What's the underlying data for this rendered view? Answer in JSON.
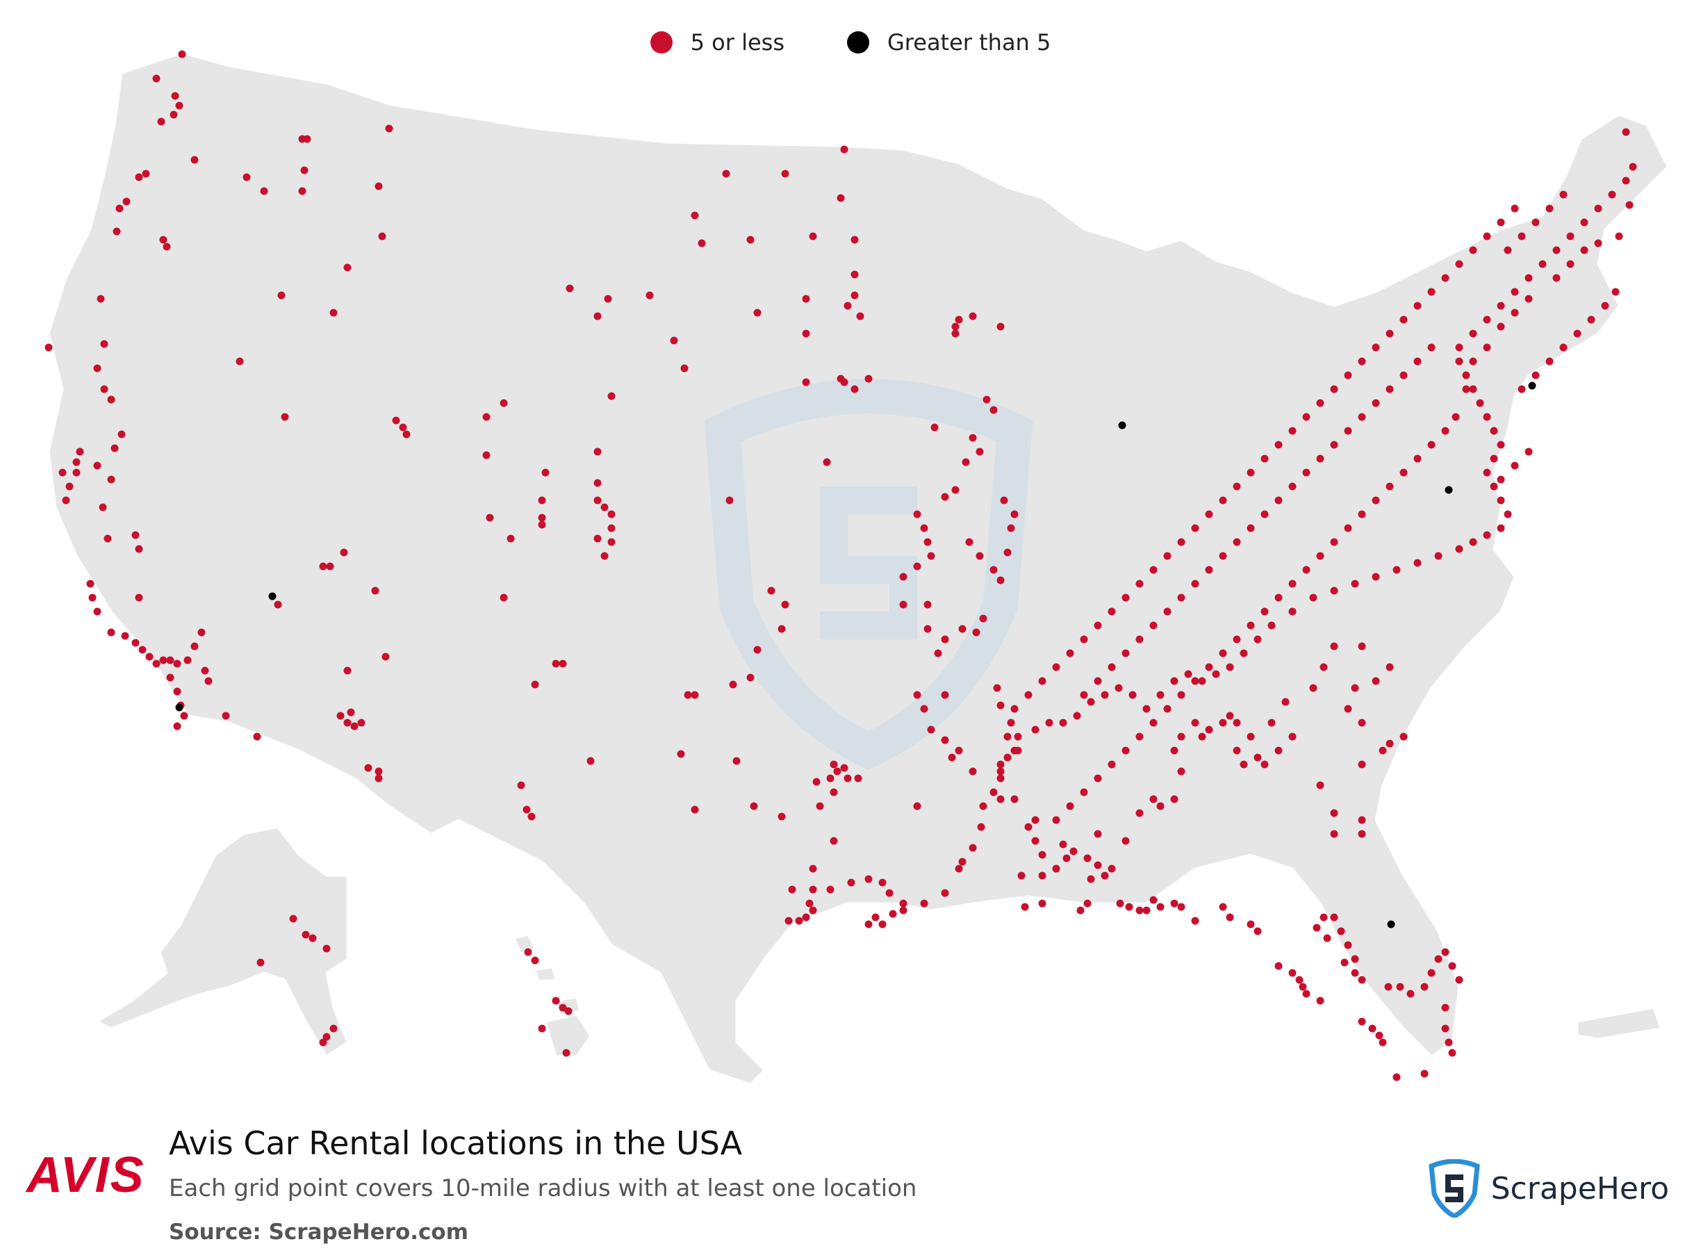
{
  "legend": {
    "small_label": "5 or less",
    "large_label": "Greater than 5",
    "small_color": "#c8102e",
    "large_color": "#000000"
  },
  "map": {
    "land_color": "#e6e6e6",
    "border_color": "#ffffff",
    "watermark_color": "#c9d8e6"
  },
  "footer": {
    "logo_text": "AVIS",
    "logo_color": "#d4002a",
    "title": "Avis Car Rental locations in the USA",
    "subtitle": "Each grid point covers 10-mile radius with at least one location",
    "source": "Source: ScrapeHero.com",
    "brand_name": "ScrapeHero",
    "brand_icon": "scrapehero-shield-icon"
  }
}
